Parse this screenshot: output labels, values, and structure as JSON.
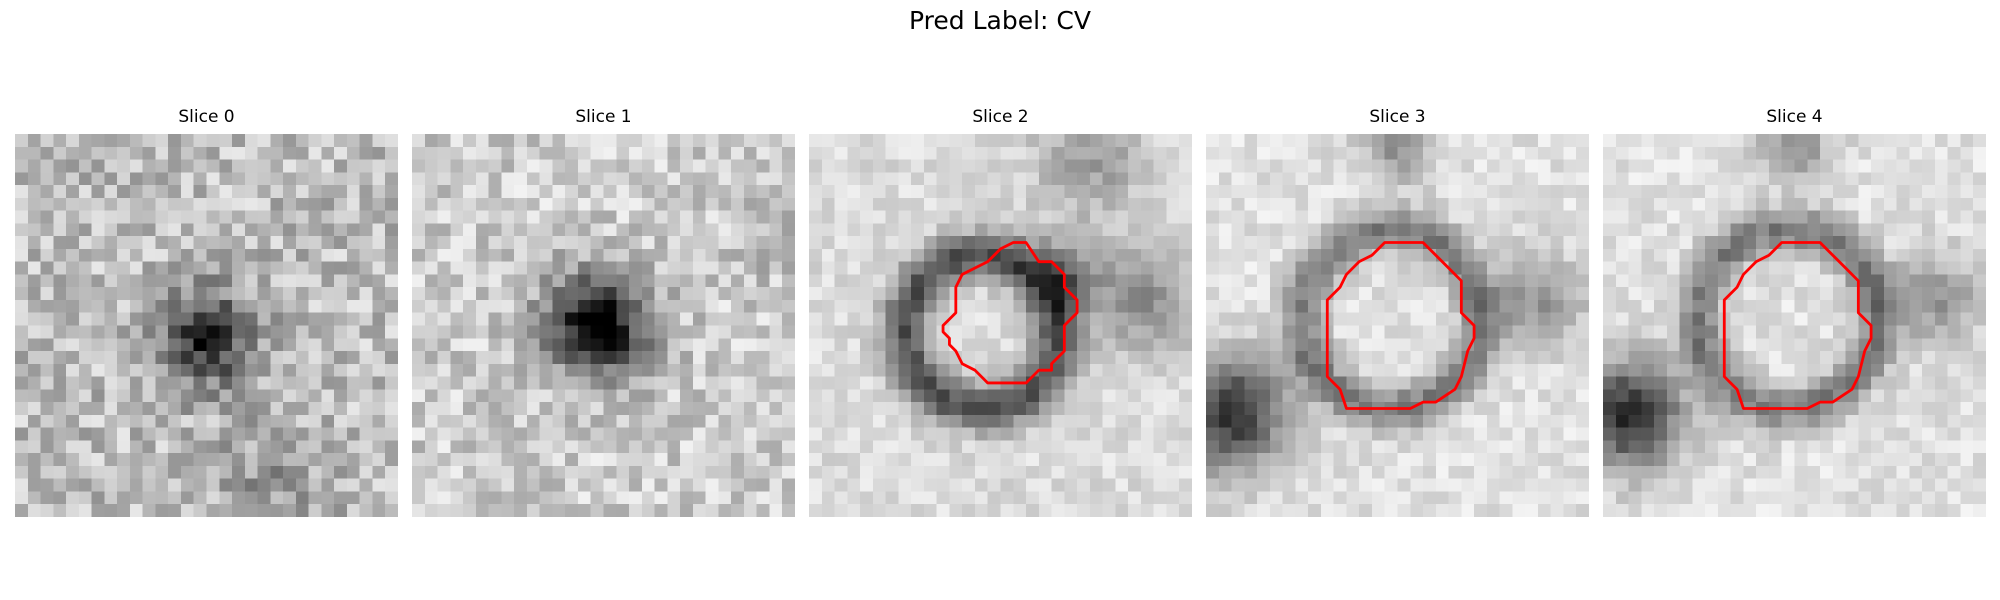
{
  "figure": {
    "title": "Pred Label: CV"
  },
  "panels": [
    {
      "title": "Slice 0",
      "has_contour": false,
      "contour_color": "#ff0000"
    },
    {
      "title": "Slice 1",
      "has_contour": false,
      "contour_color": "#ff0000"
    },
    {
      "title": "Slice 2",
      "has_contour": true,
      "contour_color": "#ff0000"
    },
    {
      "title": "Slice 3",
      "has_contour": true,
      "contour_color": "#ff0000"
    },
    {
      "title": "Slice 4",
      "has_contour": true,
      "contour_color": "#ff0000"
    }
  ],
  "colormap": "gray"
}
